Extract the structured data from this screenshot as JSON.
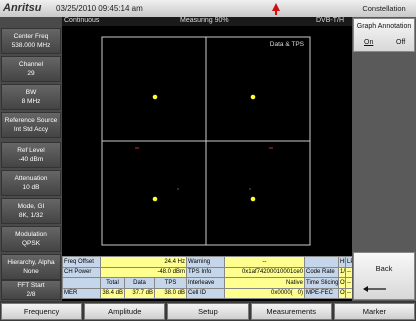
{
  "header": {
    "logo": "Anritsu",
    "datetime": "03/25/2010 09:45:14 am",
    "mode": "Constellation"
  },
  "status": {
    "sweep": "Continuous",
    "progress": "Measuring 90%",
    "standard": "DVB-T/H"
  },
  "left_menu": [
    {
      "label": "Center Freq",
      "value": "538.000 MHz"
    },
    {
      "label": "Channel",
      "value": "29"
    },
    {
      "label": "BW",
      "value": "8 MHz"
    },
    {
      "label": "Reference Source",
      "value": "Int Std Accy"
    },
    {
      "label": "Ref Level",
      "value": "-40 dBm"
    },
    {
      "label": "Attenuation",
      "value": "10 dB"
    },
    {
      "label": "Mode, GI",
      "value": "8K, 1/32"
    },
    {
      "label": "Modulation",
      "value": "QPSK"
    },
    {
      "label": "Hierarchy, Alpha",
      "value": "None"
    },
    {
      "label": "FFT Start",
      "value": "2/8"
    }
  ],
  "plot": {
    "label": "Data & TPS"
  },
  "table": {
    "rows": [
      [
        "Freq Offset",
        "24.4 Hz",
        "Warning",
        "--",
        "HP",
        "LP"
      ],
      [
        "CH Power",
        "-48.0 dBm",
        "TPS Info",
        "0x1af74200010001ce0",
        "Code Rate",
        "1/2",
        "--"
      ],
      [
        "Total",
        "Data",
        "TPS",
        "Interleave",
        "Native",
        "Time Slicing",
        "Off",
        "--"
      ],
      [
        "MER",
        "38.4 dB",
        "37.7 dB",
        "38.0 dB",
        "Cell ID",
        "0x0000(   0)",
        "MPE-FEC",
        "Off",
        "--"
      ]
    ]
  },
  "right_menu": {
    "annotation": {
      "label": "Graph Annotation",
      "on": "On",
      "off": "Off"
    },
    "back": "Back"
  },
  "bottom_menu": [
    "Frequency",
    "Amplitude",
    "Setup",
    "Measurements",
    "Marker"
  ]
}
